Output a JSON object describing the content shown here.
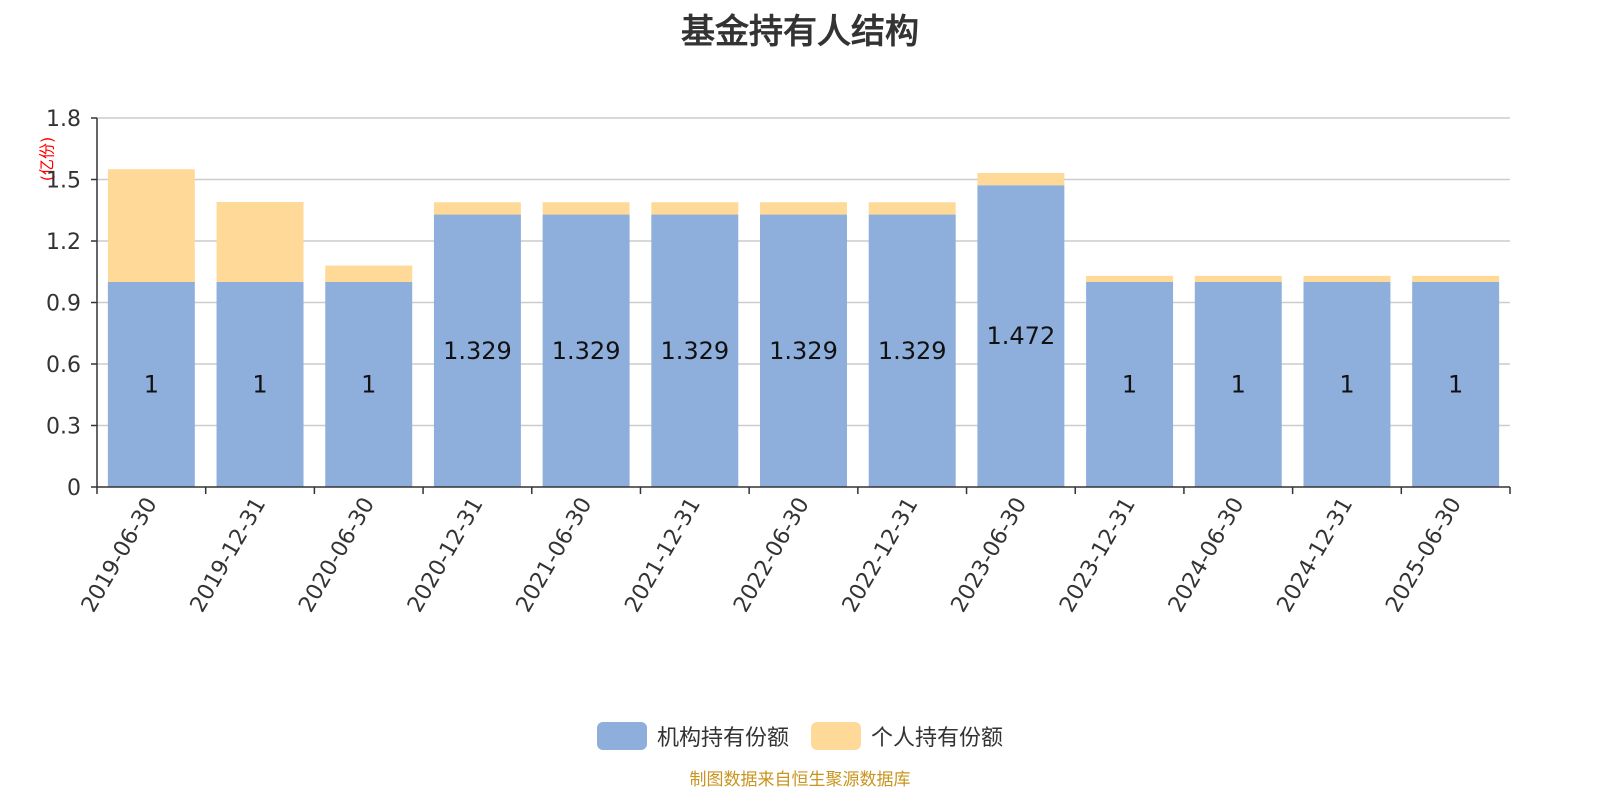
{
  "chart_data": {
    "type": "bar",
    "stacked": true,
    "title": "基金持有人结构",
    "unit_label": "(亿份)",
    "categories": [
      "2019-06-30",
      "2019-12-31",
      "2020-06-30",
      "2020-12-31",
      "2021-06-30",
      "2021-12-31",
      "2022-06-30",
      "2022-12-31",
      "2023-06-30",
      "2023-12-31",
      "2024-06-30",
      "2024-12-31",
      "2025-06-30"
    ],
    "series": [
      {
        "name": "机构持有份额",
        "color": "#8eaedb",
        "values": [
          1,
          1,
          1,
          1.329,
          1.329,
          1.329,
          1.329,
          1.329,
          1.472,
          1,
          1,
          1,
          1
        ],
        "labels": [
          "1",
          "1",
          "1",
          "1.329",
          "1.329",
          "1.329",
          "1.329",
          "1.329",
          "1.472",
          "1",
          "1",
          "1",
          "1"
        ]
      },
      {
        "name": "个人持有份额",
        "color": "#ffd998",
        "values": [
          0.55,
          0.39,
          0.08,
          0.06,
          0.06,
          0.06,
          0.06,
          0.06,
          0.06,
          0.03,
          0.03,
          0.03,
          0.03
        ]
      }
    ],
    "ylim": [
      0,
      1.8
    ],
    "yticks": [
      "0",
      "0.3",
      "0.6",
      "0.9",
      "1.2",
      "1.5",
      "1.8"
    ],
    "ytick_values": [
      0,
      0.3,
      0.6,
      0.9,
      1.2,
      1.5,
      1.8
    ],
    "grid": true,
    "legend_position": "bottom-center"
  },
  "footer": "制图数据来自恒生聚源数据库"
}
